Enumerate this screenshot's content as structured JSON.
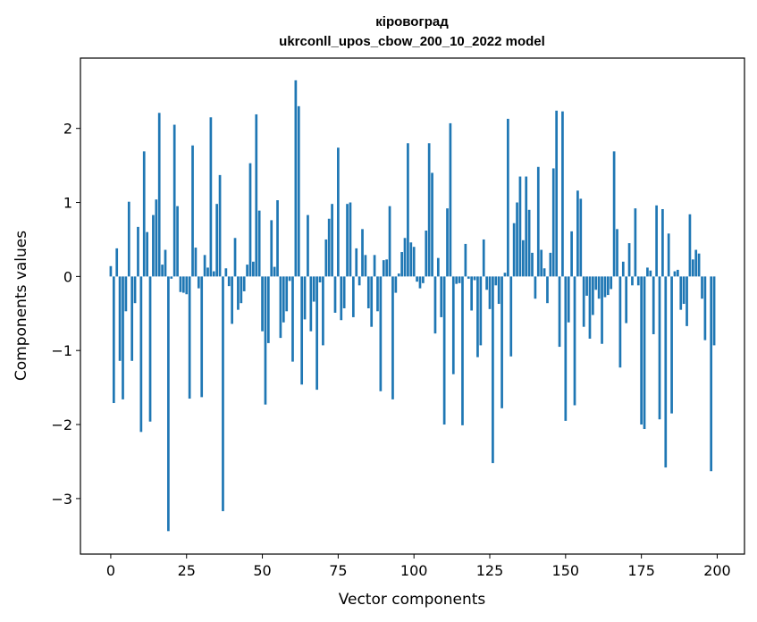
{
  "chart_data": {
    "type": "bar",
    "title": "кіровоград",
    "subtitle": "ukrconll_upos_cbow_200_10_2022 model",
    "xlabel": "Vector components",
    "ylabel": "Components values",
    "xlim": [
      -10,
      209
    ],
    "ylim": [
      -3.75,
      2.95
    ],
    "xticks": [
      0,
      25,
      50,
      75,
      100,
      125,
      150,
      175,
      200
    ],
    "yticks": [
      -3,
      -2,
      -1,
      0,
      1,
      2
    ],
    "grid": false,
    "bar_color": "#1f77b4",
    "x": [
      0,
      1,
      2,
      3,
      4,
      5,
      6,
      7,
      8,
      9,
      10,
      11,
      12,
      13,
      14,
      15,
      16,
      17,
      18,
      19,
      20,
      21,
      22,
      23,
      24,
      25,
      26,
      27,
      28,
      29,
      30,
      31,
      32,
      33,
      34,
      35,
      36,
      37,
      38,
      39,
      40,
      41,
      42,
      43,
      44,
      45,
      46,
      47,
      48,
      49,
      50,
      51,
      52,
      53,
      54,
      55,
      56,
      57,
      58,
      59,
      60,
      61,
      62,
      63,
      64,
      65,
      66,
      67,
      68,
      69,
      70,
      71,
      72,
      73,
      74,
      75,
      76,
      77,
      78,
      79,
      80,
      81,
      82,
      83,
      84,
      85,
      86,
      87,
      88,
      89,
      90,
      91,
      92,
      93,
      94,
      95,
      96,
      97,
      98,
      99,
      100,
      101,
      102,
      103,
      104,
      105,
      106,
      107,
      108,
      109,
      110,
      111,
      112,
      113,
      114,
      115,
      116,
      117,
      118,
      119,
      120,
      121,
      122,
      123,
      124,
      125,
      126,
      127,
      128,
      129,
      130,
      131,
      132,
      133,
      134,
      135,
      136,
      137,
      138,
      139,
      140,
      141,
      142,
      143,
      144,
      145,
      146,
      147,
      148,
      149,
      150,
      151,
      152,
      153,
      154,
      155,
      156,
      157,
      158,
      159,
      160,
      161,
      162,
      163,
      164,
      165,
      166,
      167,
      168,
      169,
      170,
      171,
      172,
      173,
      174,
      175,
      176,
      177,
      178,
      179,
      180,
      181,
      182,
      183,
      184,
      185,
      186,
      187,
      188,
      189,
      190,
      191,
      192,
      193,
      194,
      195,
      196,
      197,
      198,
      199
    ],
    "values": [
      0.14,
      -1.71,
      0.38,
      -1.14,
      -1.66,
      -0.47,
      1.01,
      -1.14,
      -0.36,
      0.67,
      -2.1,
      1.69,
      0.6,
      -1.96,
      0.83,
      1.04,
      2.21,
      0.16,
      0.36,
      -3.44,
      -0.03,
      2.05,
      0.95,
      -0.21,
      -0.22,
      -0.24,
      -1.65,
      1.77,
      0.39,
      -0.16,
      -1.63,
      0.29,
      0.12,
      2.15,
      0.07,
      0.98,
      1.37,
      -3.17,
      0.11,
      -0.13,
      -0.64,
      0.52,
      -0.45,
      -0.36,
      -0.2,
      0.16,
      1.53,
      0.2,
      2.19,
      0.89,
      -0.74,
      -1.73,
      -0.9,
      0.76,
      0.13,
      1.03,
      -0.83,
      -0.62,
      -0.47,
      -0.06,
      -1.15,
      2.65,
      2.3,
      -1.46,
      -0.58,
      0.83,
      -0.74,
      -0.34,
      -1.53,
      -0.08,
      -0.93,
      0.5,
      0.78,
      0.98,
      -0.49,
      1.74,
      -0.59,
      -0.43,
      0.98,
      1.0,
      -0.55,
      0.38,
      -0.12,
      0.64,
      0.29,
      -0.43,
      -0.68,
      0.29,
      -0.47,
      -1.55,
      0.22,
      0.23,
      0.95,
      -1.66,
      -0.22,
      0.04,
      0.33,
      0.52,
      1.8,
      0.46,
      0.4,
      -0.07,
      -0.16,
      -0.09,
      0.62,
      1.8,
      1.4,
      -0.77,
      0.25,
      -0.55,
      -2.0,
      0.92,
      2.07,
      -1.32,
      -0.1,
      -0.09,
      -2.01,
      0.44,
      -0.03,
      -0.46,
      -0.05,
      -1.09,
      -0.93,
      0.5,
      -0.18,
      -0.44,
      -2.52,
      -0.12,
      -0.37,
      -1.78,
      0.05,
      2.13,
      -1.08,
      0.72,
      1.0,
      1.35,
      0.49,
      1.35,
      0.9,
      0.32,
      -0.3,
      1.48,
      0.36,
      0.11,
      -0.36,
      0.32,
      1.46,
      2.24,
      -0.95,
      2.23,
      -1.95,
      -0.62,
      0.61,
      -1.74,
      1.16,
      1.05,
      -0.68,
      -0.26,
      -0.84,
      -0.52,
      -0.18,
      -0.3,
      -0.91,
      -0.28,
      -0.25,
      -0.17,
      1.69,
      0.64,
      -1.23,
      0.2,
      -0.63,
      0.45,
      -0.12,
      0.92,
      -0.12,
      -2.0,
      -2.06,
      0.12,
      0.08,
      -0.78,
      0.96,
      -1.93,
      0.91,
      -2.58,
      0.58,
      -1.85,
      0.07,
      0.09,
      -0.45,
      -0.37,
      -0.67,
      0.84,
      0.23,
      0.36,
      0.31,
      -0.3,
      -0.86,
      0.0,
      -2.63,
      -0.93
    ]
  }
}
